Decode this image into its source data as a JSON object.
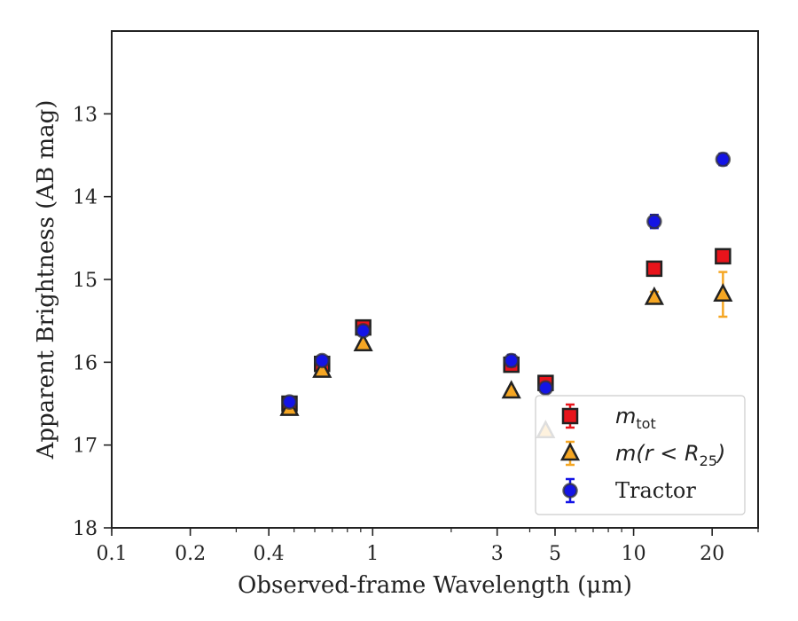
{
  "chart_data": {
    "type": "scatter",
    "xscale": "log",
    "yscale": "linear",
    "y_inverted": true,
    "xlim": [
      0.1,
      30
    ],
    "ylim": [
      18,
      12
    ],
    "xlabel": "Observed-frame Wavelength (μm)",
    "ylabel": "Apparent Brightness (AB mag)",
    "x_tick_labels": [
      {
        "value": 0.1,
        "label": "0.1"
      },
      {
        "value": 0.2,
        "label": "0.2"
      },
      {
        "value": 0.4,
        "label": "0.4"
      },
      {
        "value": 1,
        "label": "1"
      },
      {
        "value": 3,
        "label": "3"
      },
      {
        "value": 5,
        "label": "5"
      },
      {
        "value": 10,
        "label": "10"
      },
      {
        "value": 20,
        "label": "20"
      }
    ],
    "y_tick_labels": [
      {
        "value": 13,
        "label": "13"
      },
      {
        "value": 14,
        "label": "14"
      },
      {
        "value": 15,
        "label": "15"
      },
      {
        "value": 16,
        "label": "16"
      },
      {
        "value": 17,
        "label": "17"
      },
      {
        "value": 18,
        "label": "18"
      }
    ],
    "legend_position": "lower-right",
    "grid": false,
    "series": [
      {
        "key": "mtot",
        "legend_main": "m",
        "legend_sub": "tot",
        "marker": "square",
        "color": "#e8141b",
        "error_color": "#e8141b",
        "points": [
          {
            "x": 0.48,
            "y": 16.5,
            "yerr": 0.05
          },
          {
            "x": 0.64,
            "y": 16.02,
            "yerr": 0.06
          },
          {
            "x": 0.92,
            "y": 15.58,
            "yerr": 0.07
          },
          {
            "x": 3.4,
            "y": 16.03,
            "yerr": 0.08
          },
          {
            "x": 4.6,
            "y": 16.25,
            "yerr": 0.08
          },
          {
            "x": 12.0,
            "y": 14.87,
            "yerr": 0.07
          },
          {
            "x": 22.0,
            "y": 14.72,
            "yerr": 0.08
          }
        ]
      },
      {
        "key": "mr25",
        "legend_main": "m(r < R",
        "legend_sub": "25",
        "legend_end": ")",
        "marker": "triangle",
        "color": "#f5a623",
        "error_color": "#f5a623",
        "points": [
          {
            "x": 0.48,
            "y": 16.56,
            "yerr": 0.03
          },
          {
            "x": 0.64,
            "y": 16.1,
            "yerr": 0.03
          },
          {
            "x": 0.92,
            "y": 15.78,
            "yerr": 0.03
          },
          {
            "x": 3.4,
            "y": 16.35,
            "yerr": 0.03
          },
          {
            "x": 4.6,
            "y": 16.83,
            "yerr": 0.03
          },
          {
            "x": 12.0,
            "y": 15.22,
            "yerr": 0.07
          },
          {
            "x": 22.0,
            "y": 15.18,
            "yerr": 0.27
          }
        ]
      },
      {
        "key": "tractor",
        "legend_main": "Tractor",
        "marker": "circle",
        "color": "#1414e6",
        "error_color": "#1414e6",
        "points": [
          {
            "x": 0.48,
            "y": 16.48,
            "yerr": 0.05
          },
          {
            "x": 0.64,
            "y": 15.98,
            "yerr": 0.05
          },
          {
            "x": 0.92,
            "y": 15.62,
            "yerr": 0.05
          },
          {
            "x": 3.4,
            "y": 15.98,
            "yerr": 0.07
          },
          {
            "x": 4.6,
            "y": 16.31,
            "yerr": 0.05
          },
          {
            "x": 12.0,
            "y": 14.3,
            "yerr": 0.08
          },
          {
            "x": 22.0,
            "y": 13.55,
            "yerr": 0.07
          }
        ]
      }
    ]
  }
}
